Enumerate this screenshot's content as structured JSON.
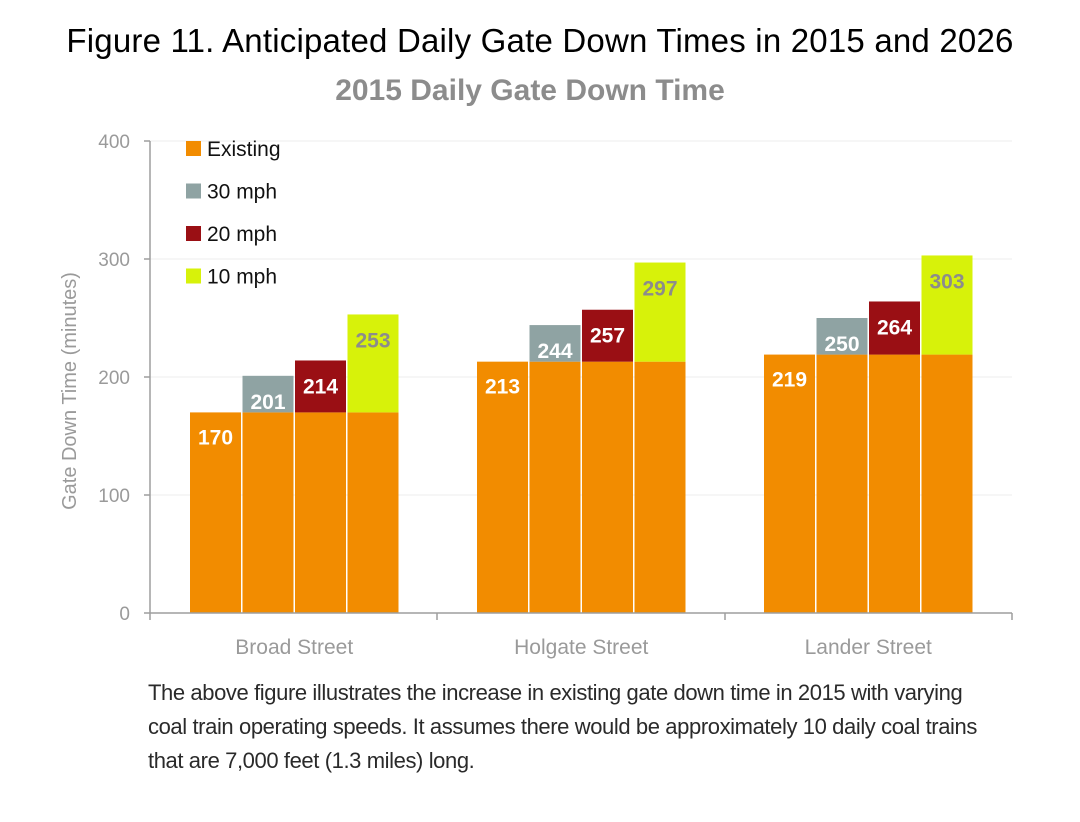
{
  "figure_title": "Figure 11. Anticipated Daily Gate Down Times in 2015 and 2026",
  "caption_lines": [
    "The above figure illustrates the increase in existing gate down time in 2015 with varying",
    "coal train operating speeds. It assumes there would be approximately 10 daily coal trains",
    "that are 7,000 feet (1.3 miles) long."
  ],
  "colors": {
    "existing": "#f28c00",
    "mph30": "#8fa3a3",
    "mph20": "#9a0f14",
    "mph10": "#d7f20a",
    "axis": "#9e9e9e",
    "grid": "#ececec"
  },
  "chart_data": {
    "type": "bar",
    "title": "2015 Daily Gate Down Time",
    "xlabel": "",
    "ylabel": "Gate Down Time (minutes)",
    "ylim": [
      0,
      400
    ],
    "yticks": [
      0,
      100,
      200,
      300,
      400
    ],
    "grid": true,
    "legend_position": "top-left",
    "categories": [
      "Broad Street",
      "Holgate Street",
      "Lander Street"
    ],
    "series": [
      {
        "name": "Existing",
        "values": [
          170,
          213,
          219
        ],
        "color": "#f28c00"
      },
      {
        "name": "30 mph",
        "values": [
          201,
          244,
          250
        ],
        "color": "#8fa3a3"
      },
      {
        "name": "20 mph",
        "values": [
          214,
          257,
          264
        ],
        "color": "#9a0f14"
      },
      {
        "name": "10 mph",
        "values": [
          253,
          297,
          303
        ],
        "color": "#d7f20a"
      }
    ]
  }
}
